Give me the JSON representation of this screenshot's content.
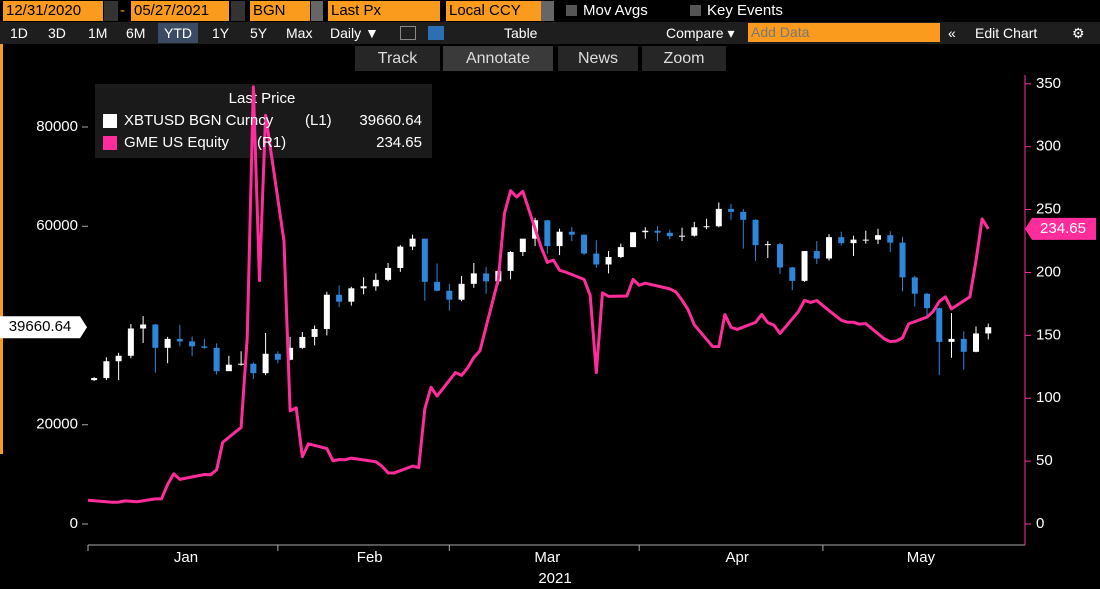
{
  "toolbar": {
    "start_date": "12/31/2020",
    "date_sep": "-",
    "end_date": "05/27/2021",
    "source": "BGN",
    "field": "Last Px",
    "currency": "Local CCY",
    "mov_avgs": "Mov Avgs",
    "key_events": "Key Events",
    "periods": [
      "1D",
      "3D",
      "1M",
      "6M",
      "YTD",
      "1Y",
      "5Y",
      "Max"
    ],
    "frequency": "Daily ▼",
    "table": "Table",
    "compare": "Compare ▾",
    "add_data": "Add Data",
    "edit_chart": "Edit Chart",
    "tools": [
      "Track",
      "Annotate",
      "News",
      "Zoom"
    ]
  },
  "chart_data": {
    "type": "candlestick",
    "xlabel": "2021",
    "legend_title": "Last Price",
    "xlim": [
      0,
      153
    ],
    "xticks": [
      {
        "value": 16,
        "label": "Jan"
      },
      {
        "value": 46,
        "label": "Feb"
      },
      {
        "value": 75,
        "label": "Mar"
      },
      {
        "value": 106,
        "label": "Apr"
      },
      {
        "value": 136,
        "label": "May"
      }
    ],
    "xticks_minor": [
      0,
      31,
      59,
      90,
      120
    ],
    "ylim": [
      -4230,
      90480
    ],
    "yticks": [
      0,
      20000,
      60000,
      80000
    ],
    "y2lim": [
      -16.7,
      357
    ],
    "y2ticks": [
      0,
      50,
      100,
      150,
      200,
      250,
      300,
      350
    ],
    "series": [
      {
        "name": "XBTUSD BGN Curncy",
        "legend_tag": "(L1)",
        "last": 39660.64,
        "type": "candlestick",
        "axis": "y",
        "color_up": "#ffffff",
        "color_down": "#2d86d9",
        "x": [
          1,
          3,
          5,
          7,
          9,
          11,
          13,
          15,
          17,
          19,
          21,
          23,
          25,
          27,
          29,
          31,
          33,
          35,
          37,
          39,
          41,
          43,
          45,
          47,
          49,
          51,
          53,
          55,
          57,
          59,
          61,
          63,
          65,
          67,
          69,
          71,
          73,
          75,
          77,
          79,
          81,
          83,
          85,
          87,
          89,
          91,
          93,
          95,
          97,
          99,
          101,
          103,
          105,
          107,
          109,
          111,
          113,
          115,
          117,
          119,
          121,
          123,
          125,
          127,
          129,
          131,
          133,
          135,
          137,
          139,
          141,
          143,
          145,
          147
        ],
        "open": [
          29000,
          29400,
          32800,
          33900,
          39400,
          40200,
          35500,
          37300,
          36800,
          35800,
          35500,
          30800,
          32100,
          32300,
          30400,
          34300,
          33100,
          35500,
          37700,
          39300,
          46200,
          44800,
          47500,
          47900,
          49200,
          51600,
          55900,
          57500,
          48800,
          47000,
          45200,
          48400,
          50500,
          48900,
          51000,
          54800,
          57500,
          61200,
          56000,
          58900,
          58300,
          54500,
          52300,
          53800,
          55800,
          58800,
          59100,
          58700,
          58000,
          58100,
          59800,
          60000,
          63500,
          62900,
          61300,
          56200,
          56400,
          51700,
          49000,
          55000,
          53500,
          57800,
          56600,
          57300,
          57300,
          58200,
          56700,
          49700,
          46400,
          43500,
          36700,
          37300,
          34700,
          38400
        ],
        "high": [
          29600,
          33600,
          34500,
          40300,
          41900,
          40300,
          37700,
          40100,
          37800,
          37300,
          36400,
          33900,
          34800,
          32600,
          38500,
          34800,
          37700,
          38700,
          40000,
          46800,
          48100,
          47800,
          49700,
          50500,
          52600,
          56200,
          58300,
          57500,
          52500,
          48400,
          50000,
          52600,
          51800,
          51400,
          55000,
          57300,
          61700,
          61300,
          59500,
          59900,
          58300,
          57200,
          55000,
          56500,
          58800,
          59800,
          60000,
          59300,
          59700,
          60900,
          61500,
          64800,
          64500,
          63500,
          61400,
          57000,
          56700,
          51800,
          55000,
          57000,
          58400,
          58900,
          58100,
          59100,
          59500,
          59000,
          57900,
          50000,
          46600,
          43600,
          42500,
          38800,
          39800,
          40400
        ],
        "low": [
          28800,
          29000,
          29000,
          33400,
          36500,
          30500,
          32400,
          35800,
          33800,
          35300,
          30100,
          30800,
          31900,
          29200,
          30000,
          32400,
          33000,
          35300,
          36000,
          38000,
          43700,
          44000,
          46300,
          47000,
          48900,
          50800,
          55200,
          45000,
          46900,
          43000,
          44900,
          47600,
          46400,
          48300,
          49300,
          54000,
          56000,
          54500,
          54200,
          57000,
          54200,
          51600,
          50500,
          53600,
          55800,
          57500,
          57000,
          57400,
          57000,
          57900,
          59400,
          59800,
          61300,
          55500,
          53000,
          53600,
          50400,
          47100,
          48800,
          52400,
          53100,
          56100,
          54000,
          56500,
          56400,
          54800,
          46900,
          43800,
          42100,
          30000,
          33500,
          31100,
          34600,
          37200
        ],
        "close": [
          29400,
          32800,
          33900,
          39400,
          40200,
          35500,
          37300,
          36800,
          35800,
          35500,
          30800,
          32100,
          32300,
          30400,
          34300,
          33100,
          35500,
          37700,
          39300,
          46200,
          44800,
          47500,
          47900,
          49200,
          51600,
          55900,
          57500,
          48800,
          47000,
          45200,
          48400,
          50500,
          48900,
          51000,
          54800,
          57500,
          61200,
          56000,
          58900,
          58300,
          54500,
          52300,
          53800,
          55800,
          58800,
          59100,
          58700,
          58000,
          58100,
          59800,
          60000,
          63500,
          62900,
          61300,
          56200,
          56400,
          51700,
          49000,
          55000,
          53500,
          57800,
          56600,
          57300,
          57300,
          58200,
          56700,
          49700,
          46400,
          43500,
          36700,
          37300,
          34700,
          38400,
          39660.64
        ]
      },
      {
        "name": "GME US Equity",
        "legend_tag": "(R1)",
        "last": 234.65,
        "type": "line",
        "axis": "y2",
        "color": "#ff2d9b",
        "x": [
          0,
          4,
          5,
          6,
          7,
          8,
          11,
          12,
          13,
          14,
          15,
          19,
          20,
          21,
          22,
          25,
          26,
          27,
          28,
          29,
          32,
          33,
          34,
          35,
          36,
          39,
          40,
          41,
          42,
          43,
          47,
          48,
          49,
          50,
          53,
          54,
          55,
          56,
          57,
          60,
          61,
          62,
          63,
          64,
          67,
          68,
          69,
          70,
          71,
          74,
          75,
          76,
          77,
          78,
          81,
          82,
          83,
          84,
          85,
          88,
          89,
          90,
          91,
          95,
          96,
          97,
          98,
          99,
          102,
          103,
          104,
          105,
          106,
          109,
          110,
          111,
          112,
          113,
          116,
          117,
          118,
          119,
          120,
          123,
          124,
          125,
          126,
          127,
          130,
          131,
          132,
          133,
          134,
          137,
          138,
          139,
          140,
          141,
          144,
          145,
          146,
          147
        ],
        "values": [
          18.84,
          17.25,
          17.37,
          18.36,
          18.08,
          17.69,
          19.94,
          19.95,
          31.4,
          39.91,
          35.5,
          39.36,
          39.12,
          43.03,
          65.01,
          76.79,
          147.98,
          347.51,
          193.6,
          325,
          225,
          90,
          92.41,
          53.5,
          63.77,
          60,
          50.31,
          51.2,
          51.1,
          52.4,
          49.51,
          45.94,
          40.69,
          40.59,
          46,
          44.97,
          91.71,
          108.73,
          101.74,
          120.4,
          118.18,
          124.18,
          132.35,
          137.74,
          194.5,
          246.9,
          265,
          260,
          264.5,
          220,
          208,
          209.81,
          201.75,
          200.27,
          194.49,
          181.75,
          120.34,
          183.75,
          181,
          181.3,
          194.46,
          189.82,
          191.45,
          186.95,
          184.5,
          177.97,
          170.26,
          158.36,
          141.09,
          140.99,
          166.53,
          156.44,
          154.69,
          160.34,
          166.5,
          160.1,
          158.1,
          151.5,
          168.9,
          177.8,
          176.2,
          177.7,
          173.6,
          162,
          160.5,
          160.4,
          158.9,
          159.3,
          147.3,
          145,
          145.5,
          148,
          159.1,
          164.5,
          169,
          176.9,
          180.6,
          171,
          180.6,
          209.4,
          242.6,
          234.65
        ]
      }
    ]
  }
}
